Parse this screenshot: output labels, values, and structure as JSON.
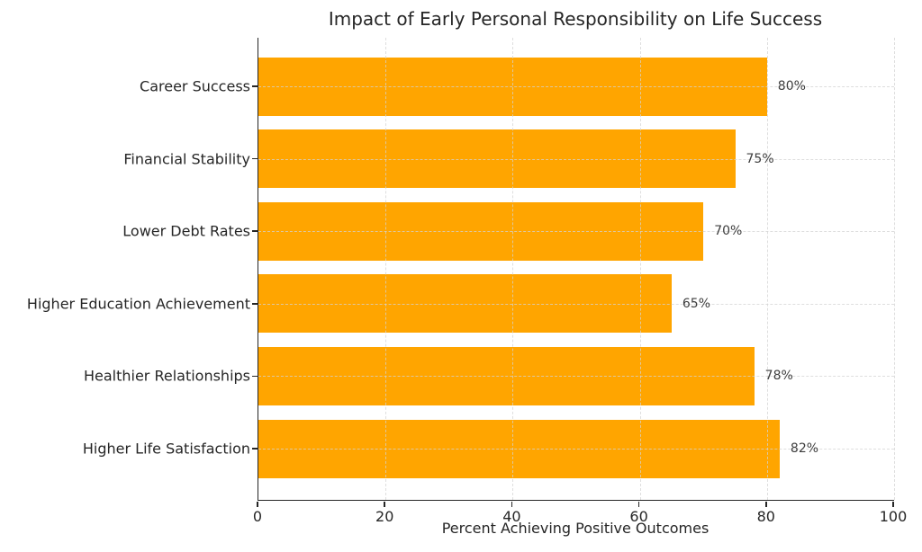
{
  "chart_data": {
    "type": "bar",
    "orientation": "horizontal",
    "title": "Impact of Early Personal Responsibility on Life Success",
    "xlabel": "Percent Achieving Positive Outcomes",
    "categories": [
      "Career Success",
      "Financial Stability",
      "Lower Debt Rates",
      "Higher Education Achievement",
      "Healthier Relationships",
      "Higher Life Satisfaction"
    ],
    "values": [
      80,
      75,
      70,
      65,
      78,
      82
    ],
    "value_labels": [
      "80%",
      "75%",
      "70%",
      "65%",
      "78%",
      "82%"
    ],
    "xlim": [
      0,
      100
    ],
    "xticks": [
      0,
      20,
      40,
      60,
      80,
      100
    ],
    "xtick_labels": [
      "0",
      "20",
      "40",
      "60",
      "80",
      "100"
    ],
    "grid": true,
    "grid_style": "dashed",
    "legend": false,
    "colors": {
      "bar": "#FFA500",
      "text": "#262626",
      "value_label": "#3d3d3d",
      "grid": "rgba(211,211,211,0.75)",
      "spine": "#262626",
      "background": "#ffffff"
    }
  }
}
